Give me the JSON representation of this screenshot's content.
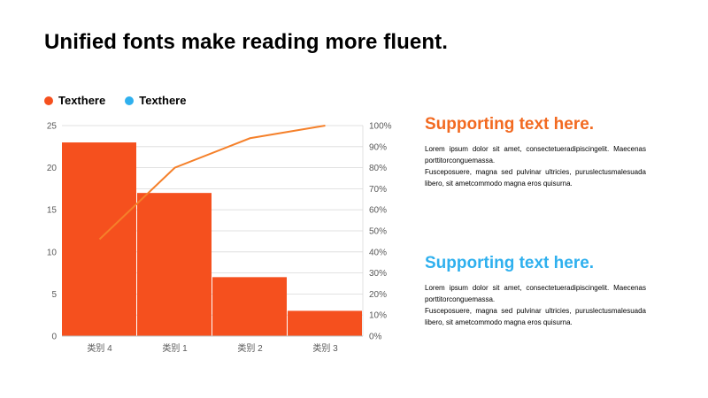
{
  "title": "Unified fonts make reading more fluent.",
  "colors": {
    "bar": "#F5501E",
    "line": "#F5802A",
    "accent_orange": "#F26A21",
    "accent_blue": "#2FB0EE",
    "grid": "#D9D9D9",
    "axis_text": "#595959"
  },
  "legend": [
    {
      "label": "Texthere",
      "color": "#F5501E"
    },
    {
      "label": "Texthere",
      "color": "#2FB0EE"
    }
  ],
  "chart_data": {
    "type": "bar",
    "categories": [
      "类别 4",
      "类别 1",
      "类别 2",
      "类别 3"
    ],
    "series": [
      {
        "values": [
          23,
          17,
          7,
          3
        ],
        "axis": "left",
        "kind": "bar"
      },
      {
        "values": [
          46,
          80,
          94,
          100
        ],
        "axis": "right",
        "kind": "line"
      }
    ],
    "ylim": [
      0,
      25
    ],
    "y_ticks": [
      0,
      5,
      10,
      15,
      20,
      25
    ],
    "y2lim": [
      0,
      100
    ],
    "y2_ticks": [
      "0%",
      "10%",
      "20%",
      "30%",
      "40%",
      "50%",
      "60%",
      "70%",
      "80%",
      "90%",
      "100%"
    ],
    "grid": true,
    "legend_position": "top-left"
  },
  "blocks": [
    {
      "heading": "Supporting text here.",
      "color": "#F26A21",
      "para1": "Lorem ipsum dolor sit amet, consectetueradipiscingelit. Maecenas porttitorconguemassa.",
      "para2": "Fusceposuere, magna sed pulvinar ultricies, puruslectusmalesuada libero, sit ametcommodo magna eros quisurna."
    },
    {
      "heading": "Supporting text here.",
      "color": "#2FB0EE",
      "para1": "Lorem ipsum dolor sit amet, consectetueradipiscingelit. Maecenas porttitorconguemassa.",
      "para2": "Fusceposuere, magna sed pulvinar ultricies, puruslectusmalesuada libero, sit ametcommodo magna eros quisurna."
    }
  ]
}
